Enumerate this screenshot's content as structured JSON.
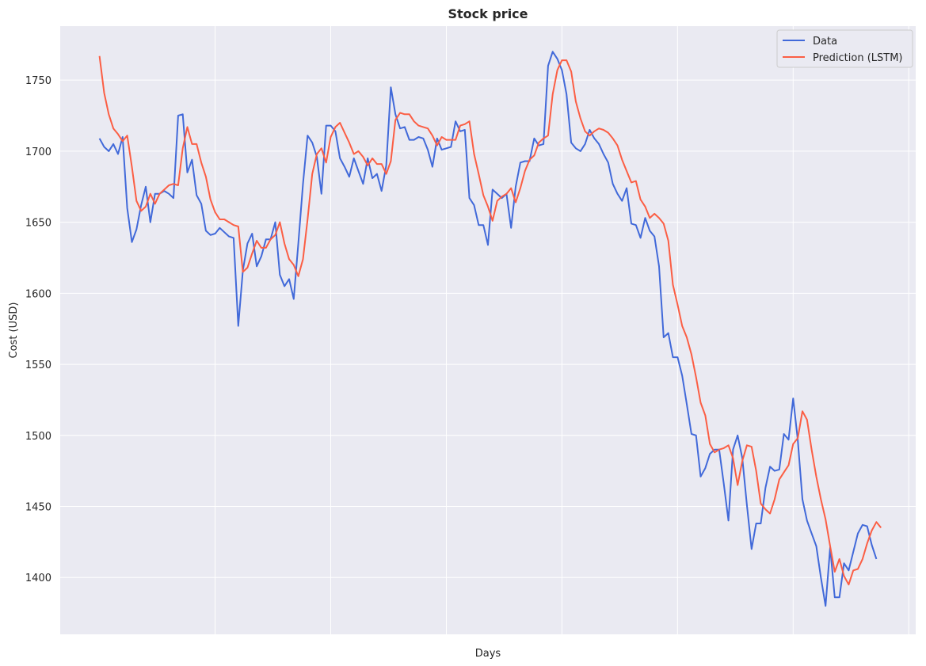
{
  "chart_data": {
    "type": "line",
    "title": "Stock price",
    "xlabel": "Days",
    "ylabel": "Cost (USD)",
    "ylim": [
      1360,
      1788
    ],
    "xlim": [
      -8.5,
      176.5
    ],
    "yticks": [
      1400,
      1450,
      1500,
      1550,
      1600,
      1650,
      1700,
      1750
    ],
    "xgrid": [
      25,
      50,
      75,
      100,
      125,
      150,
      175
    ],
    "grid": true,
    "legend_position": "top-right",
    "series": [
      {
        "name": "Data",
        "color": "#4169d9",
        "values": [
          1709,
          1703,
          1700,
          1705,
          1698,
          1710,
          1660,
          1636,
          1645,
          1662,
          1675,
          1650,
          1670,
          1670,
          1672,
          1670,
          1667,
          1725,
          1726,
          1685,
          1694,
          1669,
          1663,
          1644,
          1641,
          1642,
          1646,
          1643,
          1640,
          1639,
          1577,
          1616,
          1635,
          1642,
          1619,
          1626,
          1638,
          1638,
          1650,
          1613,
          1605,
          1610,
          1596,
          1635,
          1677,
          1711,
          1706,
          1696,
          1670,
          1718,
          1718,
          1714,
          1695,
          1689,
          1682,
          1695,
          1686,
          1677,
          1695,
          1681,
          1684,
          1672,
          1690,
          1745,
          1726,
          1716,
          1717,
          1708,
          1708,
          1710,
          1709,
          1701,
          1689,
          1709,
          1701,
          1702,
          1703,
          1721,
          1714,
          1715,
          1667,
          1662,
          1648,
          1648,
          1634,
          1673,
          1670,
          1667,
          1670,
          1646,
          1675,
          1692,
          1693,
          1693,
          1709,
          1704,
          1705,
          1760,
          1770,
          1765,
          1757,
          1740,
          1706,
          1702,
          1700,
          1705,
          1715,
          1709,
          1705,
          1698,
          1692,
          1677,
          1670,
          1665,
          1674,
          1649,
          1648,
          1639,
          1653,
          1644,
          1640,
          1619,
          1569,
          1572,
          1555,
          1555,
          1542,
          1522,
          1501,
          1500,
          1471,
          1477,
          1487,
          1490,
          1490,
          1466,
          1440,
          1490,
          1500,
          1484,
          1451,
          1420,
          1438,
          1438,
          1463,
          1478,
          1475,
          1476,
          1501,
          1497,
          1526,
          1497,
          1455,
          1440,
          1431,
          1422,
          1400,
          1380,
          1421,
          1386,
          1386,
          1410,
          1405,
          1418,
          1431,
          1437,
          1436,
          1423,
          1413
        ]
      },
      {
        "name": "Prediction (LSTM)",
        "color": "#fb5e44",
        "values": [
          1767,
          1741,
          1726,
          1716,
          1712,
          1707,
          1711,
          1689,
          1665,
          1658,
          1661,
          1670,
          1663,
          1670,
          1673,
          1676,
          1677,
          1676,
          1702,
          1717,
          1705,
          1705,
          1692,
          1682,
          1666,
          1657,
          1652,
          1652,
          1650,
          1648,
          1647,
          1615,
          1618,
          1628,
          1637,
          1632,
          1632,
          1638,
          1641,
          1650,
          1635,
          1624,
          1620,
          1612,
          1624,
          1652,
          1684,
          1698,
          1702,
          1692,
          1710,
          1717,
          1720,
          1713,
          1706,
          1698,
          1700,
          1696,
          1690,
          1695,
          1691,
          1691,
          1684,
          1693,
          1722,
          1727,
          1726,
          1726,
          1721,
          1718,
          1717,
          1716,
          1711,
          1704,
          1710,
          1708,
          1708,
          1708,
          1718,
          1719,
          1721,
          1698,
          1684,
          1669,
          1661,
          1651,
          1665,
          1668,
          1670,
          1674,
          1664,
          1674,
          1686,
          1694,
          1697,
          1706,
          1709,
          1711,
          1740,
          1757,
          1764,
          1764,
          1756,
          1735,
          1723,
          1714,
          1711,
          1714,
          1716,
          1715,
          1713,
          1709,
          1704,
          1694,
          1686,
          1678,
          1679,
          1666,
          1661,
          1653,
          1656,
          1653,
          1649,
          1637,
          1606,
          1592,
          1577,
          1569,
          1557,
          1541,
          1523,
          1514,
          1494,
          1488,
          1490,
          1491,
          1493,
          1484,
          1465,
          1482,
          1493,
          1492,
          1475,
          1452,
          1448,
          1445,
          1455,
          1469,
          1474,
          1479,
          1494,
          1498,
          1517,
          1511,
          1490,
          1471,
          1455,
          1441,
          1422,
          1404,
          1413,
          1401,
          1395,
          1405,
          1406,
          1413,
          1424,
          1433,
          1439,
          1435
        ]
      }
    ]
  }
}
